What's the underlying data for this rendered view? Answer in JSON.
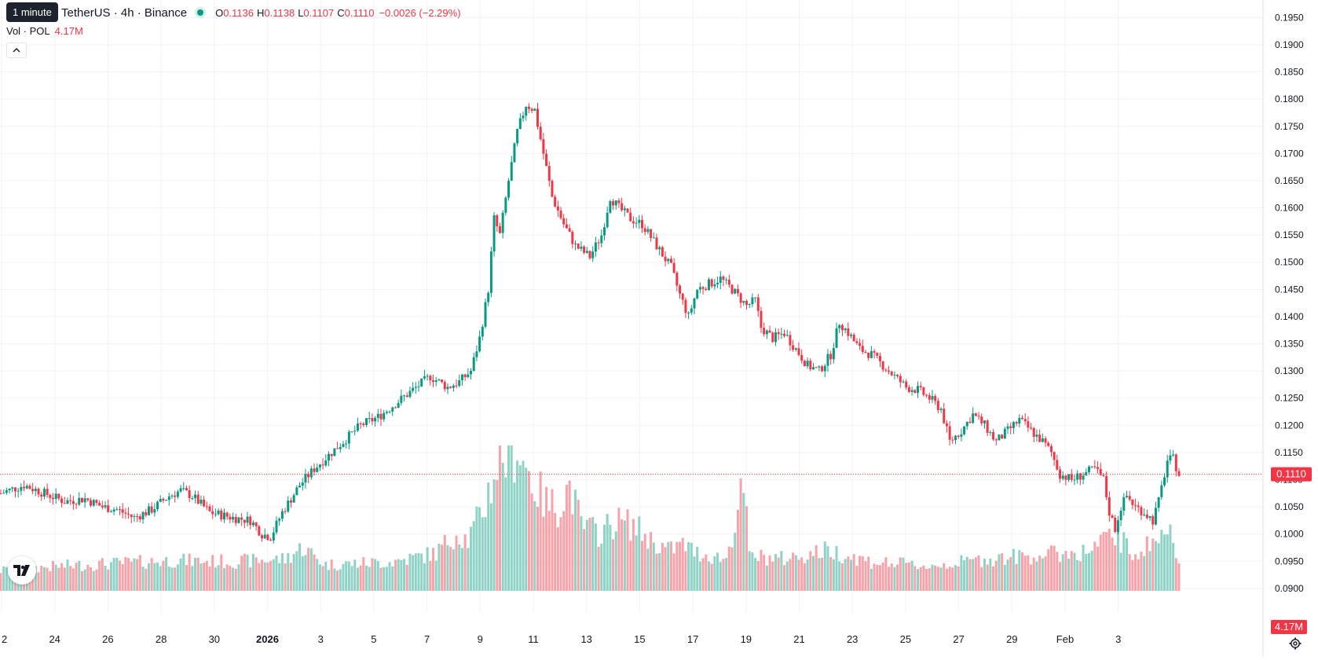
{
  "header": {
    "symbol_title": "TetherUS · 4h · Binance",
    "tooltip": "1 minute",
    "ohlc": {
      "o_label": "O",
      "o": "0.1136",
      "h_label": "H",
      "h": "0.1138",
      "l_label": "L",
      "l": "0.1107",
      "c_label": "C",
      "c": "0.1110",
      "change": "−0.0026 (−2.29%)"
    },
    "volume_label": "Vol · POL",
    "volume_value": "4.17M"
  },
  "icons": {
    "collapse": "chevron-up-icon",
    "logo": "tradingview-logo",
    "settings": "gear-icon"
  },
  "colors": {
    "up": "#089981",
    "down": "#f23645",
    "vol_up": "#8fd2c6",
    "vol_down": "#f7a3a9"
  },
  "chart_data": {
    "type": "candlestick",
    "x_tick_labels": [
      "2",
      "24",
      "26",
      "28",
      "30",
      "2026",
      "3",
      "5",
      "7",
      "9",
      "11",
      "13",
      "15",
      "17",
      "19",
      "21",
      "23",
      "25",
      "27",
      "29",
      "Feb",
      "3"
    ],
    "y_tick_labels": [
      "0.1950",
      "0.1900",
      "0.1850",
      "0.1800",
      "0.1750",
      "0.1700",
      "0.1650",
      "0.1600",
      "0.1550",
      "0.1500",
      "0.1450",
      "0.1400",
      "0.1350",
      "0.1300",
      "0.1250",
      "0.1200",
      "0.1150",
      "0.1100",
      "0.1050",
      "0.1000",
      "0.0950",
      "0.0900"
    ],
    "ylim": [
      0.0855,
      0.1965
    ],
    "last_price": "0.1110",
    "last_volume": "4.17M",
    "grid": true,
    "price_path": [
      [
        0,
        0.1075
      ],
      [
        8,
        0.109
      ],
      [
        15,
        0.1075
      ],
      [
        22,
        0.106
      ],
      [
        29,
        0.1065
      ],
      [
        35,
        0.105
      ],
      [
        40,
        0.1045
      ],
      [
        46,
        0.103
      ],
      [
        52,
        0.1045
      ],
      [
        58,
        0.107
      ],
      [
        62,
        0.108
      ],
      [
        66,
        0.107
      ],
      [
        72,
        0.104
      ],
      [
        80,
        0.103
      ],
      [
        86,
        0.1025
      ],
      [
        90,
        0.1
      ],
      [
        93,
        0.0995
      ],
      [
        97,
        0.104
      ],
      [
        103,
        0.109
      ],
      [
        108,
        0.112
      ],
      [
        112,
        0.114
      ],
      [
        118,
        0.117
      ],
      [
        124,
        0.12
      ],
      [
        130,
        0.1215
      ],
      [
        136,
        0.124
      ],
      [
        142,
        0.1265
      ],
      [
        148,
        0.129
      ],
      [
        154,
        0.127
      ],
      [
        158,
        0.128
      ],
      [
        162,
        0.13
      ],
      [
        165,
        0.136
      ],
      [
        168,
        0.145
      ],
      [
        170,
        0.158
      ],
      [
        172,
        0.155
      ],
      [
        175,
        0.165
      ],
      [
        178,
        0.174
      ],
      [
        181,
        0.179
      ],
      [
        184,
        0.178
      ],
      [
        187,
        0.17
      ],
      [
        190,
        0.162
      ],
      [
        194,
        0.157
      ],
      [
        198,
        0.153
      ],
      [
        203,
        0.151
      ],
      [
        207,
        0.155
      ],
      [
        210,
        0.162
      ],
      [
        213,
        0.16
      ],
      [
        217,
        0.158
      ],
      [
        221,
        0.157
      ],
      [
        226,
        0.153
      ],
      [
        231,
        0.149
      ],
      [
        234,
        0.144
      ],
      [
        237,
        0.14
      ],
      [
        240,
        0.145
      ],
      [
        244,
        0.146
      ],
      [
        248,
        0.147
      ],
      [
        252,
        0.145
      ],
      [
        257,
        0.142
      ],
      [
        260,
        0.143
      ],
      [
        262,
        0.138
      ],
      [
        266,
        0.136
      ],
      [
        270,
        0.137
      ],
      [
        274,
        0.134
      ],
      [
        278,
        0.131
      ],
      [
        282,
        0.13
      ],
      [
        286,
        0.133
      ],
      [
        289,
        0.139
      ],
      [
        292,
        0.137
      ],
      [
        296,
        0.134
      ],
      [
        300,
        0.133
      ],
      [
        304,
        0.131
      ],
      [
        308,
        0.129
      ],
      [
        312,
        0.127
      ],
      [
        316,
        0.1265
      ],
      [
        320,
        0.125
      ],
      [
        324,
        0.123
      ],
      [
        327,
        0.117
      ],
      [
        331,
        0.119
      ],
      [
        335,
        0.122
      ],
      [
        339,
        0.12
      ],
      [
        343,
        0.117
      ],
      [
        347,
        0.119
      ],
      [
        351,
        0.121
      ],
      [
        355,
        0.119
      ],
      [
        359,
        0.117
      ],
      [
        362,
        0.115
      ],
      [
        365,
        0.111
      ],
      [
        369,
        0.11
      ],
      [
        373,
        0.111
      ],
      [
        377,
        0.112
      ],
      [
        380,
        0.11
      ],
      [
        382,
        0.104
      ],
      [
        384,
        0.101
      ],
      [
        386,
        0.105
      ],
      [
        388,
        0.107
      ],
      [
        391,
        0.105
      ],
      [
        394,
        0.104
      ],
      [
        397,
        0.1025
      ],
      [
        399,
        0.106
      ],
      [
        402,
        0.1135
      ],
      [
        404,
        0.1138
      ],
      [
        406,
        0.111
      ]
    ],
    "volume_path": [
      [
        0,
        0.14
      ],
      [
        20,
        0.17
      ],
      [
        40,
        0.19
      ],
      [
        60,
        0.21
      ],
      [
        80,
        0.2
      ],
      [
        98,
        0.22
      ],
      [
        104,
        0.3
      ],
      [
        112,
        0.18
      ],
      [
        135,
        0.2
      ],
      [
        150,
        0.26
      ],
      [
        157,
        0.4
      ],
      [
        161,
        0.35
      ],
      [
        166,
        0.55
      ],
      [
        170,
        0.8
      ],
      [
        172,
        0.9
      ],
      [
        175,
        0.95
      ],
      [
        178,
        1.0
      ],
      [
        181,
        0.85
      ],
      [
        184,
        0.72
      ],
      [
        188,
        0.6
      ],
      [
        192,
        0.58
      ],
      [
        196,
        0.72
      ],
      [
        200,
        0.45
      ],
      [
        206,
        0.4
      ],
      [
        212,
        0.48
      ],
      [
        218,
        0.45
      ],
      [
        224,
        0.35
      ],
      [
        230,
        0.28
      ],
      [
        235,
        0.32
      ],
      [
        240,
        0.26
      ],
      [
        250,
        0.22
      ],
      [
        256,
        0.72
      ],
      [
        258,
        0.24
      ],
      [
        270,
        0.22
      ],
      [
        285,
        0.28
      ],
      [
        300,
        0.2
      ],
      [
        320,
        0.17
      ],
      [
        340,
        0.22
      ],
      [
        360,
        0.25
      ],
      [
        375,
        0.27
      ],
      [
        380,
        0.34
      ],
      [
        384,
        0.4
      ],
      [
        390,
        0.25
      ],
      [
        398,
        0.35
      ],
      [
        402,
        0.42
      ],
      [
        406,
        0.25
      ]
    ]
  }
}
